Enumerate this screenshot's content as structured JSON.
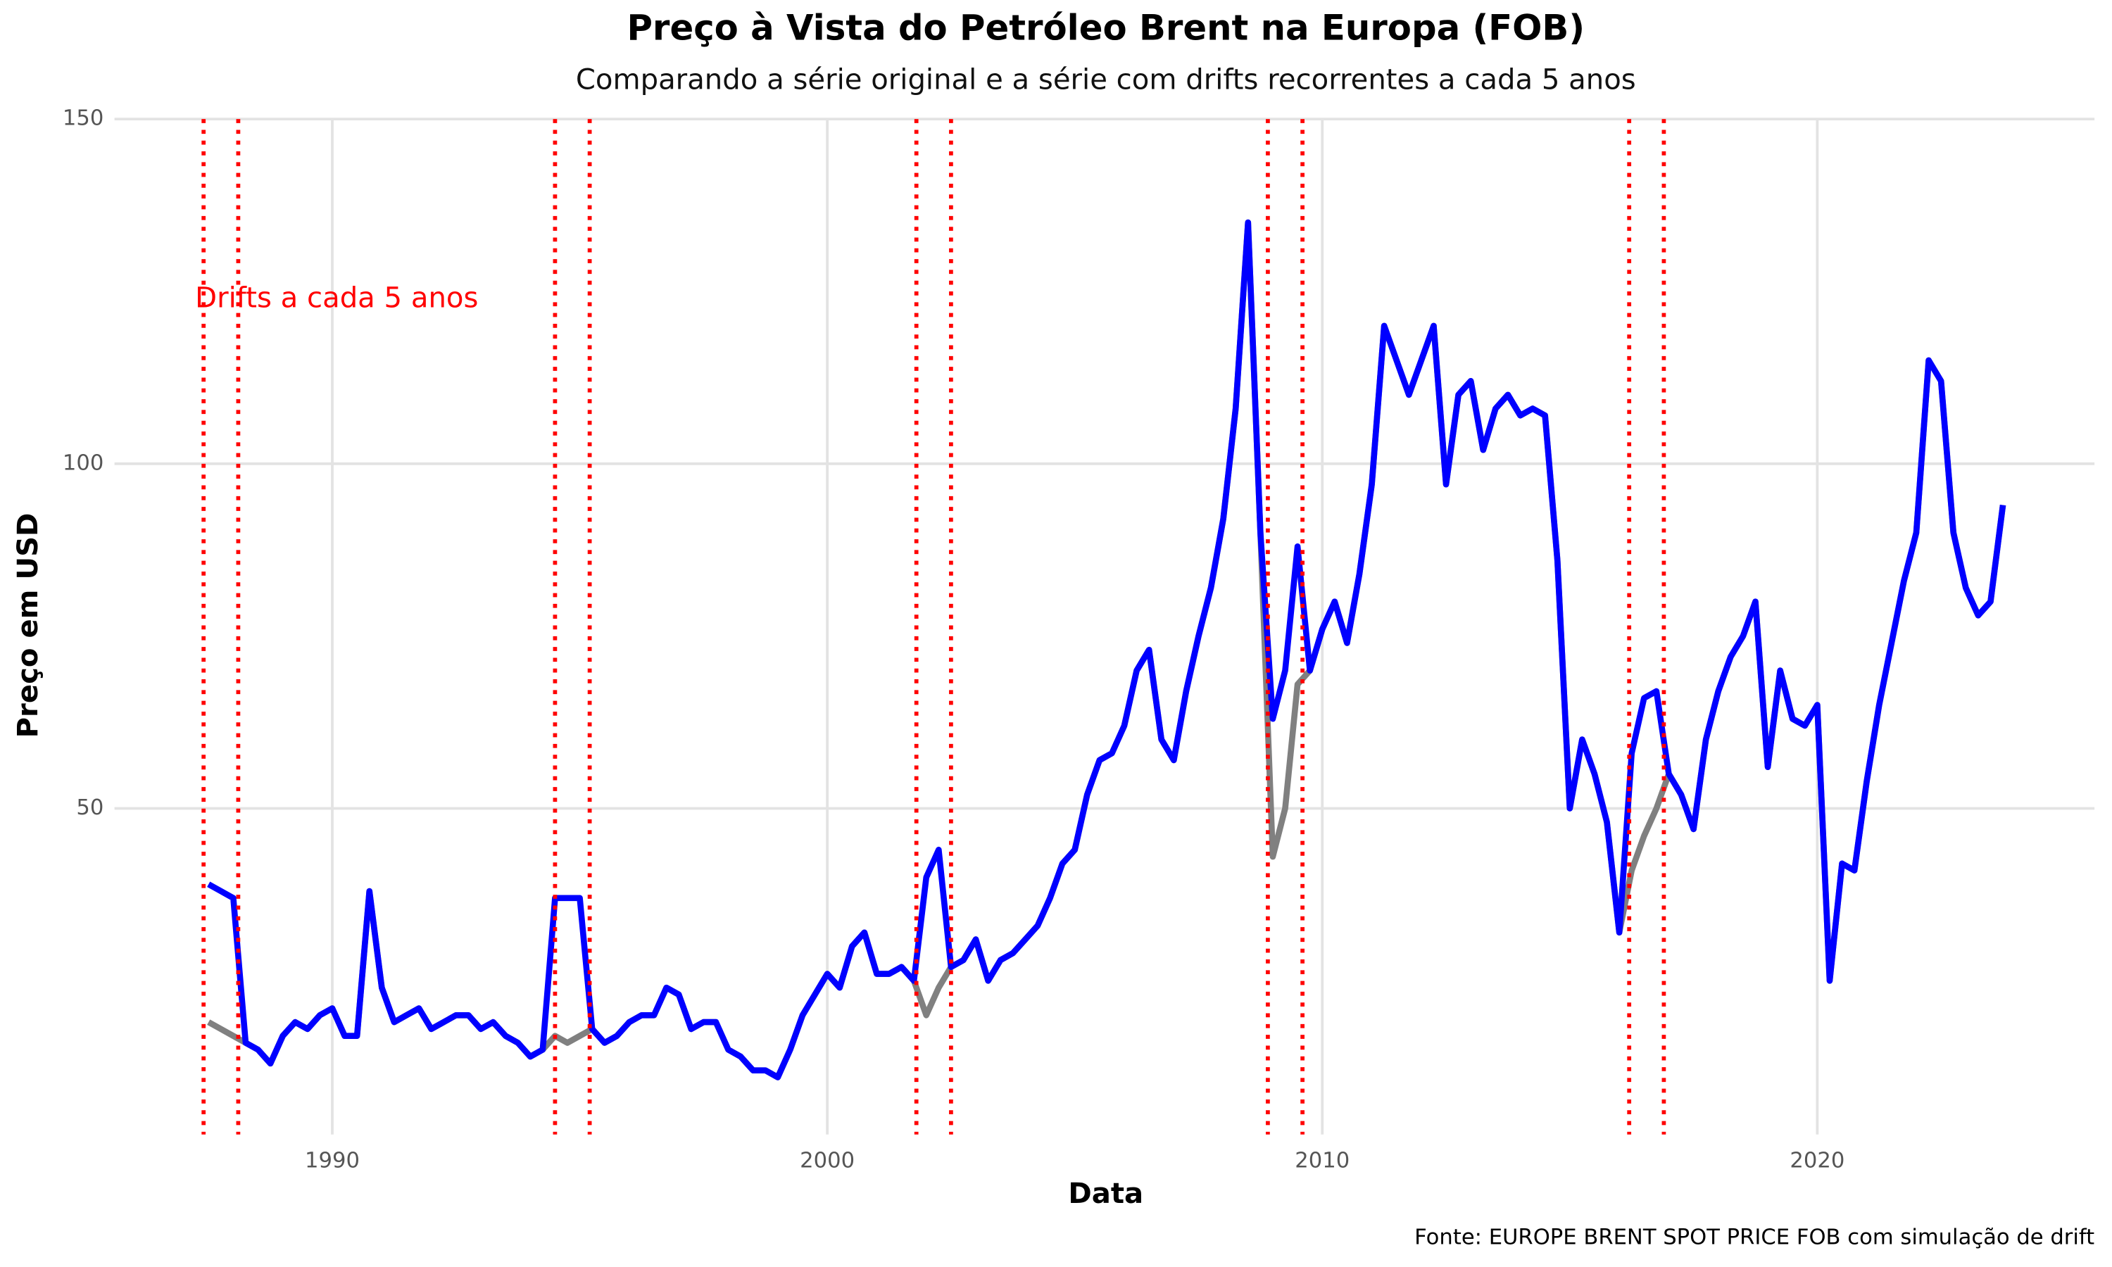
{
  "chart_data": {
    "type": "line",
    "title": "Preço à Vista do Petróleo Brent na Europa (FOB)",
    "subtitle": "Comparando a série original e a série com drifts recorrentes a cada 5 anos",
    "x_label": "Data",
    "y_label": "Preço em USD",
    "caption": "Fonte: EUROPE BRENT SPOT PRICE FOB com simulação de drift",
    "annotation": "Drifts a cada 5 anos",
    "annotation_color": "#ff0000",
    "xlim": [
      1985.6,
      2025.6
    ],
    "ylim": [
      2.7,
      150
    ],
    "xticks": [
      1990,
      2000,
      2010,
      2020
    ],
    "yticks": [
      50,
      100,
      150
    ],
    "grid": true,
    "vlines": [
      1987.4,
      1988.1,
      1994.5,
      1995.2,
      2001.8,
      2002.5,
      2008.9,
      2009.6,
      2016.2,
      2016.9
    ],
    "vline_color": "#ff0000",
    "x": [
      1987.5,
      1987.75,
      1988.0,
      1988.25,
      1988.5,
      1988.75,
      1989.0,
      1989.25,
      1989.5,
      1989.75,
      1990.0,
      1990.25,
      1990.5,
      1990.75,
      1991.0,
      1991.25,
      1991.5,
      1991.75,
      1992.0,
      1992.25,
      1992.5,
      1992.75,
      1993.0,
      1993.25,
      1993.5,
      1993.75,
      1994.0,
      1994.25,
      1994.5,
      1994.75,
      1995.0,
      1995.25,
      1995.5,
      1995.75,
      1996.0,
      1996.25,
      1996.5,
      1996.75,
      1997.0,
      1997.25,
      1997.5,
      1997.75,
      1998.0,
      1998.25,
      1998.5,
      1998.75,
      1999.0,
      1999.25,
      1999.5,
      1999.75,
      2000.0,
      2000.25,
      2000.5,
      2000.75,
      2001.0,
      2001.25,
      2001.5,
      2001.75,
      2002.0,
      2002.25,
      2002.5,
      2002.75,
      2003.0,
      2003.25,
      2003.5,
      2003.75,
      2004.0,
      2004.25,
      2004.5,
      2004.75,
      2005.0,
      2005.25,
      2005.5,
      2005.75,
      2006.0,
      2006.25,
      2006.5,
      2006.75,
      2007.0,
      2007.25,
      2007.5,
      2007.75,
      2008.0,
      2008.25,
      2008.5,
      2008.75,
      2009.0,
      2009.25,
      2009.5,
      2009.75,
      2010.0,
      2010.25,
      2010.5,
      2010.75,
      2011.0,
      2011.25,
      2011.5,
      2011.75,
      2012.0,
      2012.25,
      2012.5,
      2012.75,
      2013.0,
      2013.25,
      2013.5,
      2013.75,
      2014.0,
      2014.25,
      2014.5,
      2014.75,
      2015.0,
      2015.25,
      2015.5,
      2015.75,
      2016.0,
      2016.25,
      2016.5,
      2016.75,
      2017.0,
      2017.25,
      2017.5,
      2017.75,
      2018.0,
      2018.25,
      2018.5,
      2018.75,
      2019.0,
      2019.25,
      2019.5,
      2019.75,
      2020.0,
      2020.25,
      2020.5,
      2020.75,
      2021.0,
      2021.25,
      2021.5,
      2021.75,
      2022.0,
      2022.25,
      2022.5,
      2022.75,
      2023.0,
      2023.25,
      2023.5,
      2023.75
    ],
    "series": [
      {
        "color": "#808080",
        "values": [
          19,
          18,
          17,
          16,
          15,
          13,
          17,
          19,
          18,
          20,
          21,
          17,
          17,
          38,
          24,
          19,
          20,
          21,
          18,
          19,
          20,
          20,
          18,
          19,
          17,
          16,
          14,
          15,
          17,
          16,
          17,
          18,
          16,
          17,
          19,
          20,
          20,
          24,
          23,
          18,
          19,
          19,
          15,
          14,
          12,
          12,
          11,
          15,
          20,
          23,
          26,
          24,
          30,
          32,
          26,
          26,
          27,
          25,
          20,
          24,
          27,
          28,
          31,
          25,
          28,
          29,
          31,
          33,
          37,
          42,
          44,
          52,
          57,
          58,
          62,
          70,
          73,
          60,
          57,
          67,
          75,
          82,
          92,
          108,
          135,
          90,
          43,
          50,
          68,
          70,
          76,
          80,
          74,
          84,
          97,
          120,
          115,
          110,
          115,
          120,
          97,
          110,
          112,
          102,
          108,
          110,
          107,
          108,
          107,
          86,
          50,
          60,
          55,
          48,
          32,
          41,
          46,
          50,
          55,
          52,
          47,
          60,
          67,
          72,
          75,
          80,
          56,
          70,
          63,
          62,
          65,
          25,
          42,
          41,
          54,
          65,
          74,
          83,
          90,
          115,
          112,
          90,
          82,
          78,
          80,
          94
        ]
      },
      {
        "color": "#0000ff",
        "values": [
          39,
          38,
          37,
          16,
          15,
          13,
          17,
          19,
          18,
          20,
          21,
          17,
          17,
          38,
          24,
          19,
          20,
          21,
          18,
          19,
          20,
          20,
          18,
          19,
          17,
          16,
          14,
          15,
          37,
          37,
          37,
          18,
          16,
          17,
          19,
          20,
          20,
          24,
          23,
          18,
          19,
          19,
          15,
          14,
          12,
          12,
          11,
          15,
          20,
          23,
          26,
          24,
          30,
          32,
          26,
          26,
          27,
          25,
          40,
          44,
          27,
          28,
          31,
          25,
          28,
          29,
          31,
          33,
          37,
          42,
          44,
          52,
          57,
          58,
          62,
          70,
          73,
          60,
          57,
          67,
          75,
          82,
          92,
          108,
          135,
          90,
          63,
          70,
          88,
          70,
          76,
          80,
          74,
          84,
          97,
          120,
          115,
          110,
          115,
          120,
          97,
          110,
          112,
          102,
          108,
          110,
          107,
          108,
          107,
          86,
          50,
          60,
          55,
          48,
          32,
          58,
          66,
          67,
          55,
          52,
          47,
          60,
          67,
          72,
          75,
          80,
          56,
          70,
          63,
          62,
          65,
          25,
          42,
          41,
          54,
          65,
          74,
          83,
          90,
          115,
          112,
          90,
          82,
          78,
          80,
          94
        ]
      }
    ]
  }
}
